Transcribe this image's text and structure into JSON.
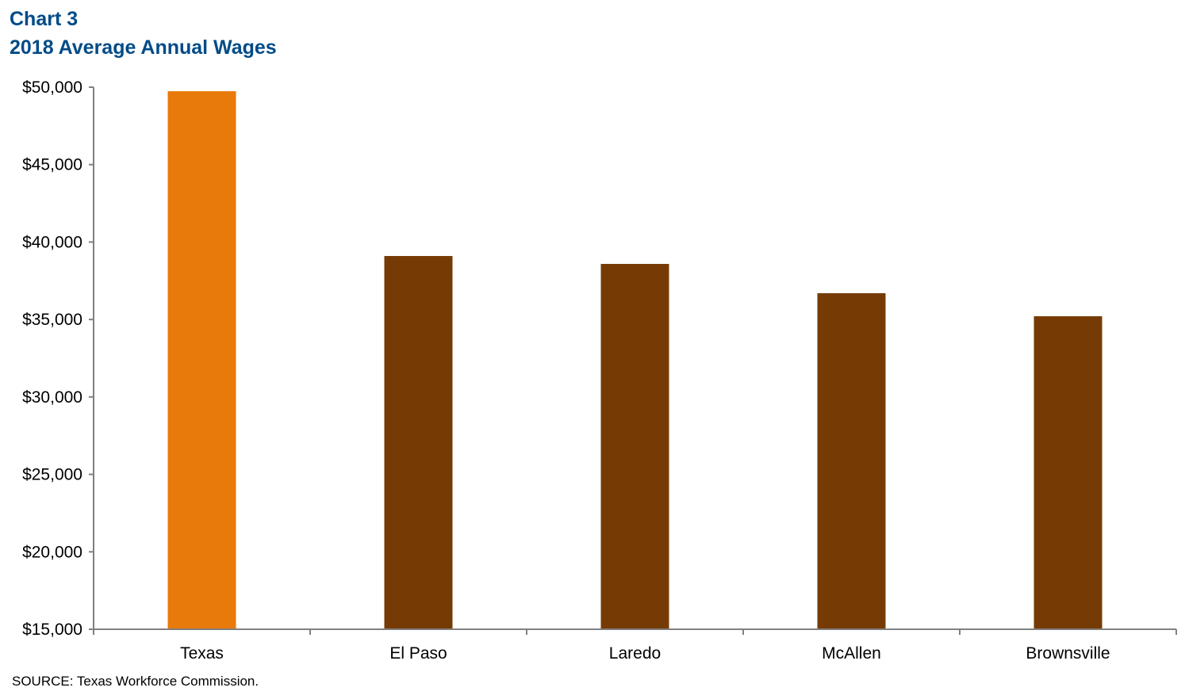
{
  "header": {
    "chart_number": "Chart 3",
    "title": "2018 Average Annual Wages"
  },
  "footer": {
    "source": "SOURCE:  Texas Workforce Commission."
  },
  "colors": {
    "title": "#004b87",
    "highlight_bar": "#e8790b",
    "bar": "#763b04",
    "axis": "#808080"
  },
  "chart_data": {
    "type": "bar",
    "title": "2018 Average Annual Wages",
    "subtitle": "Chart 3",
    "xlabel": "",
    "ylabel": "",
    "categories": [
      "Texas",
      "El Paso",
      "Laredo",
      "McAllen",
      "Brownsville"
    ],
    "values": [
      49740,
      39100,
      38590,
      36700,
      35210
    ],
    "highlight": [
      "Texas"
    ],
    "ylim": [
      15000,
      50000
    ],
    "yticks": [
      15000,
      20000,
      25000,
      30000,
      35000,
      40000,
      45000,
      50000
    ],
    "ytick_labels": [
      "$15,000",
      "$20,000",
      "$25,000",
      "$30,000",
      "$35,000",
      "$40,000",
      "$45,000",
      "$50,000"
    ],
    "grid": false,
    "legend": null,
    "source": "Texas Workforce Commission"
  }
}
